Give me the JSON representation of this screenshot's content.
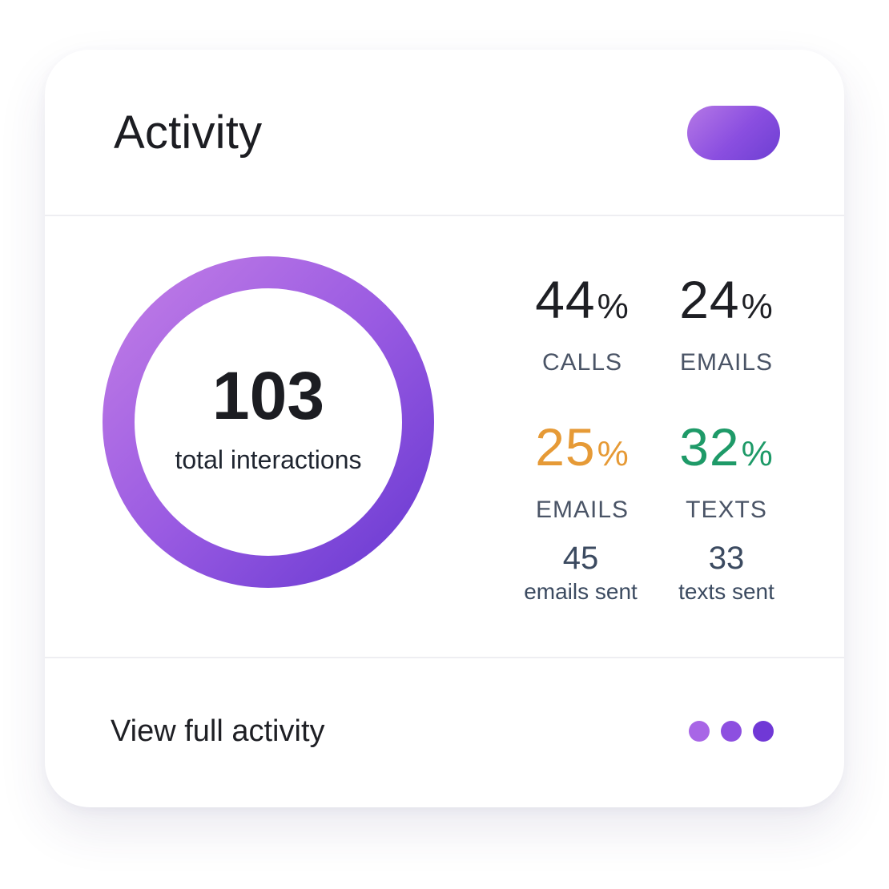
{
  "header": {
    "title": "Activity"
  },
  "summary": {
    "total": "103",
    "caption": "total interactions"
  },
  "stats": [
    {
      "value": "44",
      "unit": "%",
      "label": "CALLS",
      "color": "#1e1f24"
    },
    {
      "value": "24",
      "unit": "%",
      "label": "EMAILS",
      "color": "#1e1f24"
    },
    {
      "value": "25",
      "unit": "%",
      "label": "EMAILS",
      "color": "#e69a36"
    },
    {
      "value": "32",
      "unit": "%",
      "label": "TEXTS",
      "color": "#1e9a68"
    }
  ],
  "details": [
    {
      "value": "45",
      "label": "emails sent"
    },
    {
      "value": "33",
      "label": "texts sent"
    }
  ],
  "footer": {
    "link_label": "View full activity"
  },
  "colors": {
    "accent_light": "#b578e6",
    "accent": "#8a4ee0",
    "accent_dark": "#6d3fd2",
    "dot_colors": [
      "#a866e6",
      "#8d4fe0",
      "#7038d6"
    ]
  },
  "icons": {
    "menu": "more-dots-icon"
  }
}
